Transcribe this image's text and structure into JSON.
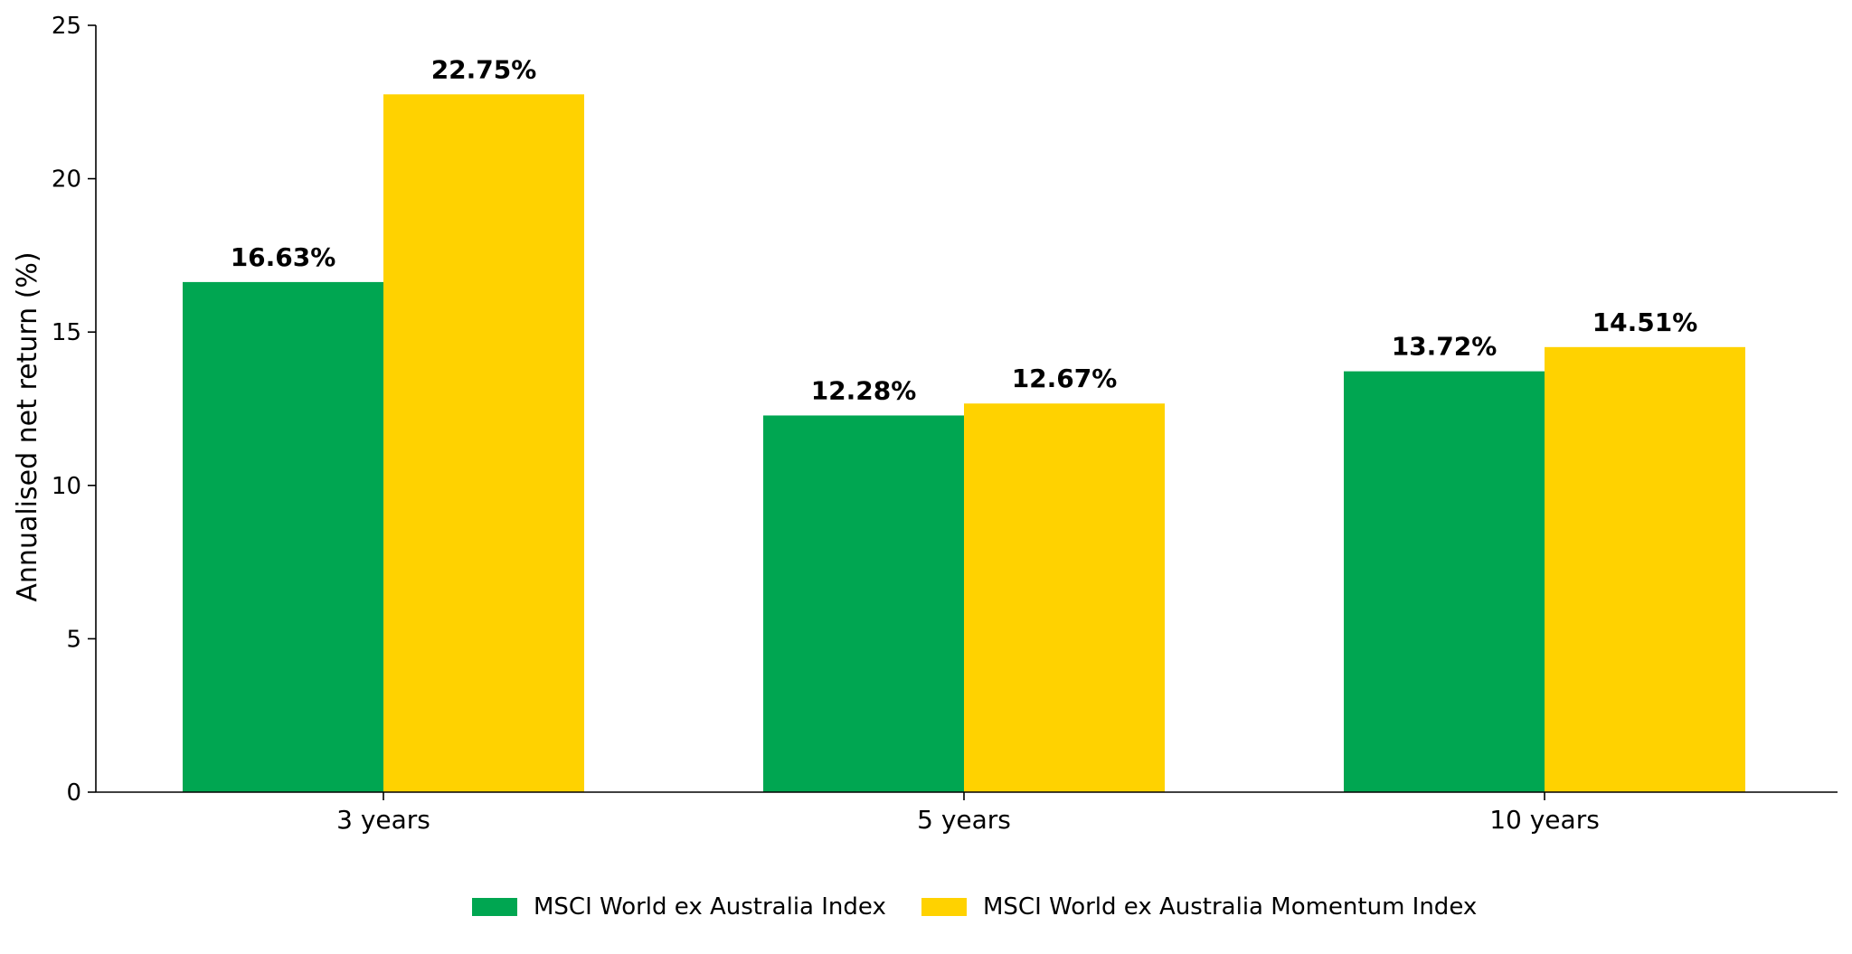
{
  "chart_data": {
    "type": "bar",
    "title": "",
    "xlabel": "",
    "ylabel": "Annualised net return (%)",
    "ylim": [
      0,
      25
    ],
    "yticks": [
      0,
      5,
      10,
      15,
      20,
      25
    ],
    "categories": [
      "3 years",
      "5 years",
      "10 years"
    ],
    "series": [
      {
        "name": "MSCI World ex Australia Index",
        "color": "#00A651",
        "values": [
          16.63,
          12.28,
          13.72
        ],
        "labels": [
          "16.63%",
          "12.28%",
          "13.72%"
        ]
      },
      {
        "name": "MSCI World ex Australia Momentum Index",
        "color": "#FFD200",
        "values": [
          22.75,
          12.67,
          14.51
        ],
        "labels": [
          "22.75%",
          "12.67%",
          "14.51%"
        ]
      }
    ],
    "grid": false,
    "legend_position": "bottom-center"
  }
}
